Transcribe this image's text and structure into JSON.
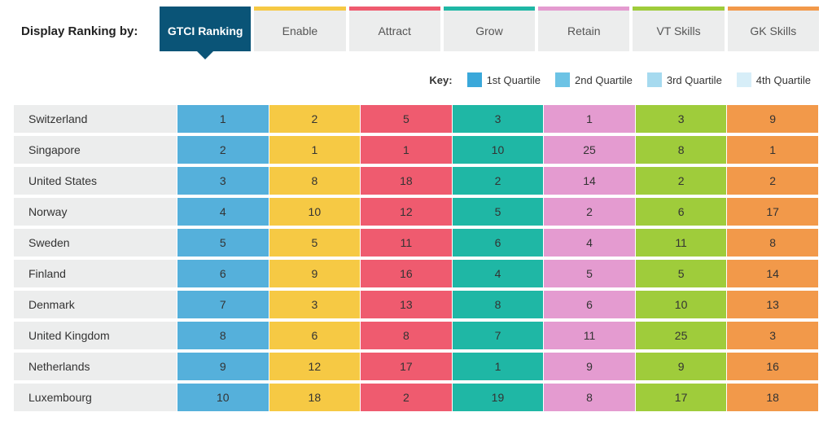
{
  "header": {
    "display_label": "Display Ranking by:",
    "tabs": [
      {
        "label": "GTCI Ranking",
        "stripe": "#0a5477",
        "active": true
      },
      {
        "label": "Enable",
        "stripe": "#f6c944",
        "active": false
      },
      {
        "label": "Attract",
        "stripe": "#ef5b6f",
        "active": false
      },
      {
        "label": "Grow",
        "stripe": "#1fb7a5",
        "active": false
      },
      {
        "label": "Retain",
        "stripe": "#e49bd0",
        "active": false
      },
      {
        "label": "VT Skills",
        "stripe": "#9fcc3b",
        "active": false
      },
      {
        "label": "GK Skills",
        "stripe": "#f2994a",
        "active": false
      }
    ]
  },
  "legend": {
    "key_label": "Key:",
    "items": [
      {
        "label": "1st Quartile",
        "color": "#3aa8da"
      },
      {
        "label": "2nd Quartile",
        "color": "#6cc3e5"
      },
      {
        "label": "3rd Quartile",
        "color": "#a6daef"
      },
      {
        "label": "4th Quartile",
        "color": "#d7eef8"
      }
    ]
  },
  "table": {
    "country_bg": "#eceded",
    "column_colors": [
      "#55b0db",
      "#f6c944",
      "#ef5b6f",
      "#1fb7a5",
      "#e49bd0",
      "#9fcc3b",
      "#f2994a"
    ],
    "text_color": "#333333",
    "rows": [
      {
        "country": "Switzerland",
        "values": [
          1,
          2,
          5,
          3,
          1,
          3,
          9
        ]
      },
      {
        "country": "Singapore",
        "values": [
          2,
          1,
          1,
          10,
          25,
          8,
          1
        ]
      },
      {
        "country": "United States",
        "values": [
          3,
          8,
          18,
          2,
          14,
          2,
          2
        ]
      },
      {
        "country": "Norway",
        "values": [
          4,
          10,
          12,
          5,
          2,
          6,
          17
        ]
      },
      {
        "country": "Sweden",
        "values": [
          5,
          5,
          11,
          6,
          4,
          11,
          8
        ]
      },
      {
        "country": "Finland",
        "values": [
          6,
          9,
          16,
          4,
          5,
          5,
          14
        ]
      },
      {
        "country": "Denmark",
        "values": [
          7,
          3,
          13,
          8,
          6,
          10,
          13
        ]
      },
      {
        "country": "United Kingdom",
        "values": [
          8,
          6,
          8,
          7,
          11,
          25,
          3
        ]
      },
      {
        "country": "Netherlands",
        "values": [
          9,
          12,
          17,
          1,
          9,
          9,
          16
        ]
      },
      {
        "country": "Luxembourg",
        "values": [
          10,
          18,
          2,
          19,
          8,
          17,
          18
        ]
      }
    ]
  }
}
